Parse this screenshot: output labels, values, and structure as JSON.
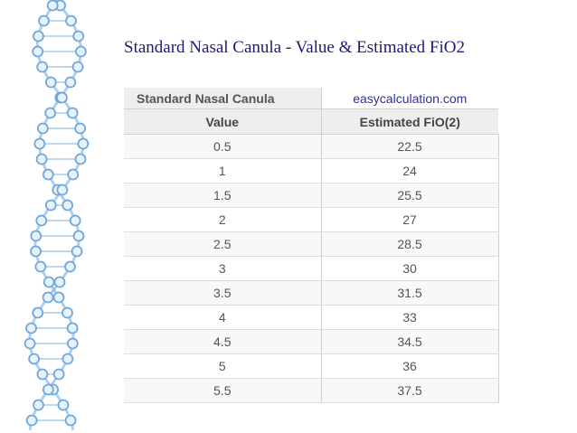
{
  "slide": {
    "title": "Standard Nasal Canula - Value & Estimated FiO2"
  },
  "table": {
    "caption": "Standard Nasal Canula",
    "source": "easycalculation.com",
    "headers": [
      "Value",
      "Estimated FiO(2)"
    ],
    "rows": [
      [
        "0.5",
        "22.5"
      ],
      [
        "1",
        "24"
      ],
      [
        "1.5",
        "25.5"
      ],
      [
        "2",
        "27"
      ],
      [
        "2.5",
        "28.5"
      ],
      [
        "3",
        "30"
      ],
      [
        "3.5",
        "31.5"
      ],
      [
        "4",
        "33"
      ],
      [
        "4.5",
        "34.5"
      ],
      [
        "5",
        "36"
      ],
      [
        "5.5",
        "37.5"
      ]
    ]
  },
  "decor": {
    "dna_color": "#6fa8dc",
    "title_color": "#1b1b7e"
  }
}
